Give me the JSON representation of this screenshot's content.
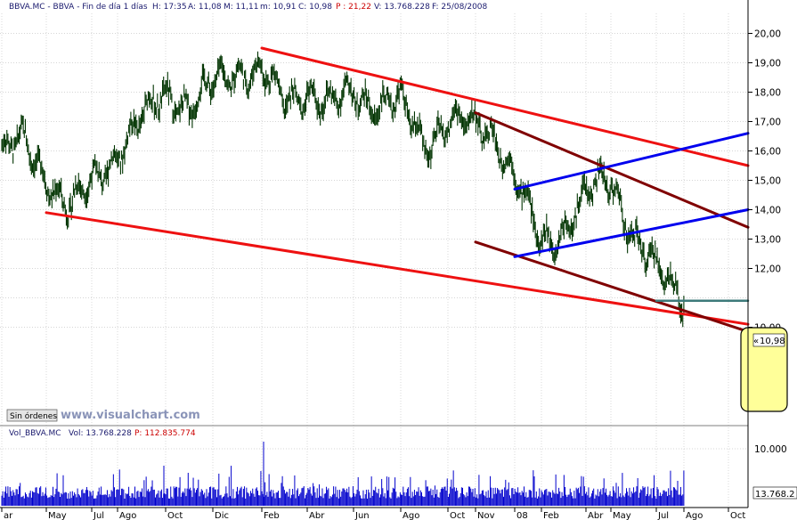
{
  "header": {
    "symbol": "BBVA.MC - BBVA - Fin de día 1 días",
    "hour": "H: 17:35",
    "open": "A: 11,08",
    "high": "M: 11,11",
    "low": "m: 10,91",
    "close": "C: 10,98",
    "per": "P : 21,22",
    "volume": "V: 13.768.228",
    "date": "F: 25/08/2008"
  },
  "volume_header": {
    "title": "Vol_BBVA.MC",
    "vol": "Vol: 13.768.228",
    "avg": "P: 112.835.774"
  },
  "orders_button": "Sin órdenes",
  "watermark": "www.visualchart.com",
  "last_price_label": "10,98",
  "last_volume_label": "13.768.2",
  "volume_hidden_label": "10.000",
  "colors": {
    "candle": "#003300",
    "red_line": "#ee1111",
    "brown_line": "#800000",
    "blue_line": "#0000ee",
    "support_line": "#3d7a7a",
    "volume_bar": "#0000cc",
    "highlight_fill": "#ffff99",
    "grid": "#c8c8c8"
  },
  "chart_data": {
    "type": "line",
    "title": "",
    "x_axis": {
      "labels": [
        "ar",
        "May",
        "Jul",
        "Ago",
        "Oct",
        "Dic",
        "Feb",
        "Abr",
        "Jun",
        "Ago",
        "Oct",
        "Nov",
        "08",
        "Feb",
        "Abr",
        "May",
        "Jul",
        "Ago",
        "Oct"
      ]
    },
    "y_axis": {
      "range": [
        9.2,
        20.4
      ],
      "ticks": [
        "20,00",
        "19,00",
        "18,00",
        "17,00",
        "16,00",
        "15,00",
        "14,00",
        "13,00",
        "12,00",
        "10,00"
      ]
    },
    "series": [
      {
        "x": [
          "2006-03",
          "2006-04",
          "2006-05",
          "2006-06",
          "2006-07",
          "2006-08",
          "2006-09",
          "2006-10",
          "2006-11",
          "2006-12",
          "2007-01",
          "2007-02",
          "2007-03",
          "2007-04",
          "2007-05",
          "2007-06",
          "2007-07",
          "2007-08",
          "2007-09",
          "2007-10",
          "2007-11",
          "2007-12",
          "2008-01",
          "2008-02",
          "2008-03",
          "2008-04",
          "2008-05",
          "2008-06",
          "2008-07",
          "2008-08"
        ],
        "close": [
          15.9,
          16.3,
          15.2,
          14.0,
          14.9,
          16.0,
          17.0,
          18.0,
          17.5,
          18.2,
          18.8,
          18.7,
          17.6,
          18.1,
          17.5,
          18.0,
          17.6,
          17.6,
          16.2,
          17.0,
          16.8,
          16.6,
          15.2,
          12.8,
          13.4,
          14.5,
          15.0,
          13.2,
          11.9,
          10.98
        ]
      }
    ],
    "trendlines": [
      {
        "name": "",
        "from": [
          "2006-05",
          13.9
        ],
        "to": [
          "2008-10",
          10.1
        ]
      },
      {
        "name": "",
        "from": [
          "2007-02",
          19.5
        ],
        "to": [
          "2008-10",
          15.5
        ]
      },
      {
        "name": "",
        "from": [
          "2007-11",
          17.3
        ],
        "to": [
          "2008-10",
          13.4
        ]
      },
      {
        "name": "",
        "from": [
          "2007-11",
          12.9
        ],
        "to": [
          "2008-10",
          9.85
        ]
      },
      {
        "name": "",
        "from": [
          "2008-01",
          14.7
        ],
        "to": [
          "2008-10",
          16.6
        ]
      },
      {
        "name": "",
        "from": [
          "2008-01",
          12.4
        ],
        "to": [
          "2008-10",
          14.0
        ]
      },
      {
        "name": "",
        "from": [
          "2008-07",
          10.9
        ],
        "to": [
          "2008-10",
          10.9
        ]
      }
    ],
    "volume": {
      "ticks": [
        "10.000"
      ],
      "last": "13.768.2"
    },
    "last_price": 10.98,
    "grid": true,
    "legend": "none"
  }
}
